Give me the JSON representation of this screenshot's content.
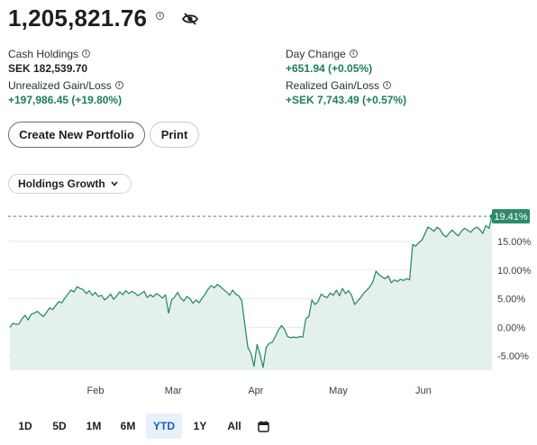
{
  "header": {
    "total_value": "1,205,821.76"
  },
  "stats": {
    "cash_holdings": {
      "label": "Cash Holdings",
      "value": "SEK 182,539.70"
    },
    "day_change": {
      "label": "Day Change",
      "value": "+651.94 (+0.05%)"
    },
    "unrealized": {
      "label": "Unrealized Gain/Loss",
      "value": "+197,986.45 (+19.80%)"
    },
    "realized": {
      "label": "Realized Gain/Loss",
      "value": "+SEK 7,743.49 (+0.57%)"
    }
  },
  "buttons": {
    "create_portfolio": "Create New Portfolio",
    "print": "Print"
  },
  "dropdown": {
    "label": "Holdings Growth"
  },
  "chart_data": {
    "type": "area",
    "current_label": "19.41%",
    "y_ticks": [
      "15.00%",
      "10.00%",
      "5.00%",
      "0.00%",
      "-5.00%"
    ],
    "ylim": [
      -7.5,
      21
    ],
    "x_ticks": [
      "Feb",
      "Mar",
      "Apr",
      "May",
      "Jun"
    ],
    "colors": {
      "line": "#2e8b6a",
      "fill": "#e3f1ea",
      "label_bg": "#2e8b6a",
      "grid": "#e8eaec",
      "dash": "#3a8f6e"
    },
    "series": [
      {
        "values": [
          0.0,
          0.7,
          0.5,
          0.6,
          1.5,
          2.1,
          1.3,
          2.3,
          2.5,
          2.8,
          2.3,
          1.9,
          2.6,
          3.4,
          3.1,
          3.8,
          4.5,
          4.3,
          5.1,
          5.8,
          6.5,
          6.2,
          7.1,
          6.8,
          6.6,
          5.9,
          6.4,
          5.6,
          6.1,
          5.4,
          5.6,
          4.8,
          5.2,
          5.8,
          4.9,
          5.5,
          6.2,
          5.7,
          6.4,
          5.9,
          6.3,
          6.0,
          5.5,
          5.9,
          6.3,
          5.2,
          5.7,
          5.3,
          5.9,
          5.6,
          5.1,
          5.7,
          2.5,
          4.8,
          5.3,
          6.1,
          5.1,
          4.6,
          5.4,
          5.0,
          4.2,
          4.8,
          4.3,
          5.1,
          5.8,
          6.7,
          7.3,
          6.9,
          7.5,
          7.1,
          6.6,
          6.2,
          5.6,
          6.5,
          5.8,
          5.5,
          4.7,
          0.5,
          -3.5,
          -4.5,
          -6.8,
          -3.0,
          -4.8,
          -7.0,
          -3.5,
          -2.8,
          -2.6,
          -1.6,
          -0.5,
          0.3,
          -0.3,
          -1.6,
          -1.8,
          -1.7,
          -1.8,
          -1.6,
          -1.7,
          1.5,
          1.9,
          4.8,
          4.0,
          4.5,
          5.8,
          5.4,
          5.2,
          6.0,
          5.6,
          6.5,
          5.5,
          6.8,
          5.9,
          6.4,
          5.6,
          4.0,
          4.6,
          5.2,
          6.0,
          6.5,
          7.1,
          8.0,
          9.8,
          9.2,
          8.8,
          8.5,
          9.0,
          7.8,
          8.3,
          8.0,
          8.4,
          8.2,
          8.5,
          8.3,
          14.5,
          14.2,
          14.8,
          15.2,
          16.3,
          17.5,
          17.2,
          16.8,
          17.5,
          17.1,
          16.2,
          15.8,
          16.5,
          17.0,
          16.4,
          16.0,
          16.8,
          17.3,
          17.0,
          16.6,
          17.2,
          17.5,
          17.1,
          16.4,
          17.8,
          17.3,
          19.41
        ]
      }
    ]
  },
  "tabs": [
    {
      "label": "1D",
      "active": false
    },
    {
      "label": "5D",
      "active": false
    },
    {
      "label": "1M",
      "active": false
    },
    {
      "label": "6M",
      "active": false
    },
    {
      "label": "YTD",
      "active": true
    },
    {
      "label": "1Y",
      "active": false
    },
    {
      "label": "All",
      "active": false
    }
  ],
  "icons": {
    "info": "info-icon",
    "hide": "eye-off-icon",
    "calendar": "calendar-icon",
    "chevron": "chevron-down-icon"
  }
}
